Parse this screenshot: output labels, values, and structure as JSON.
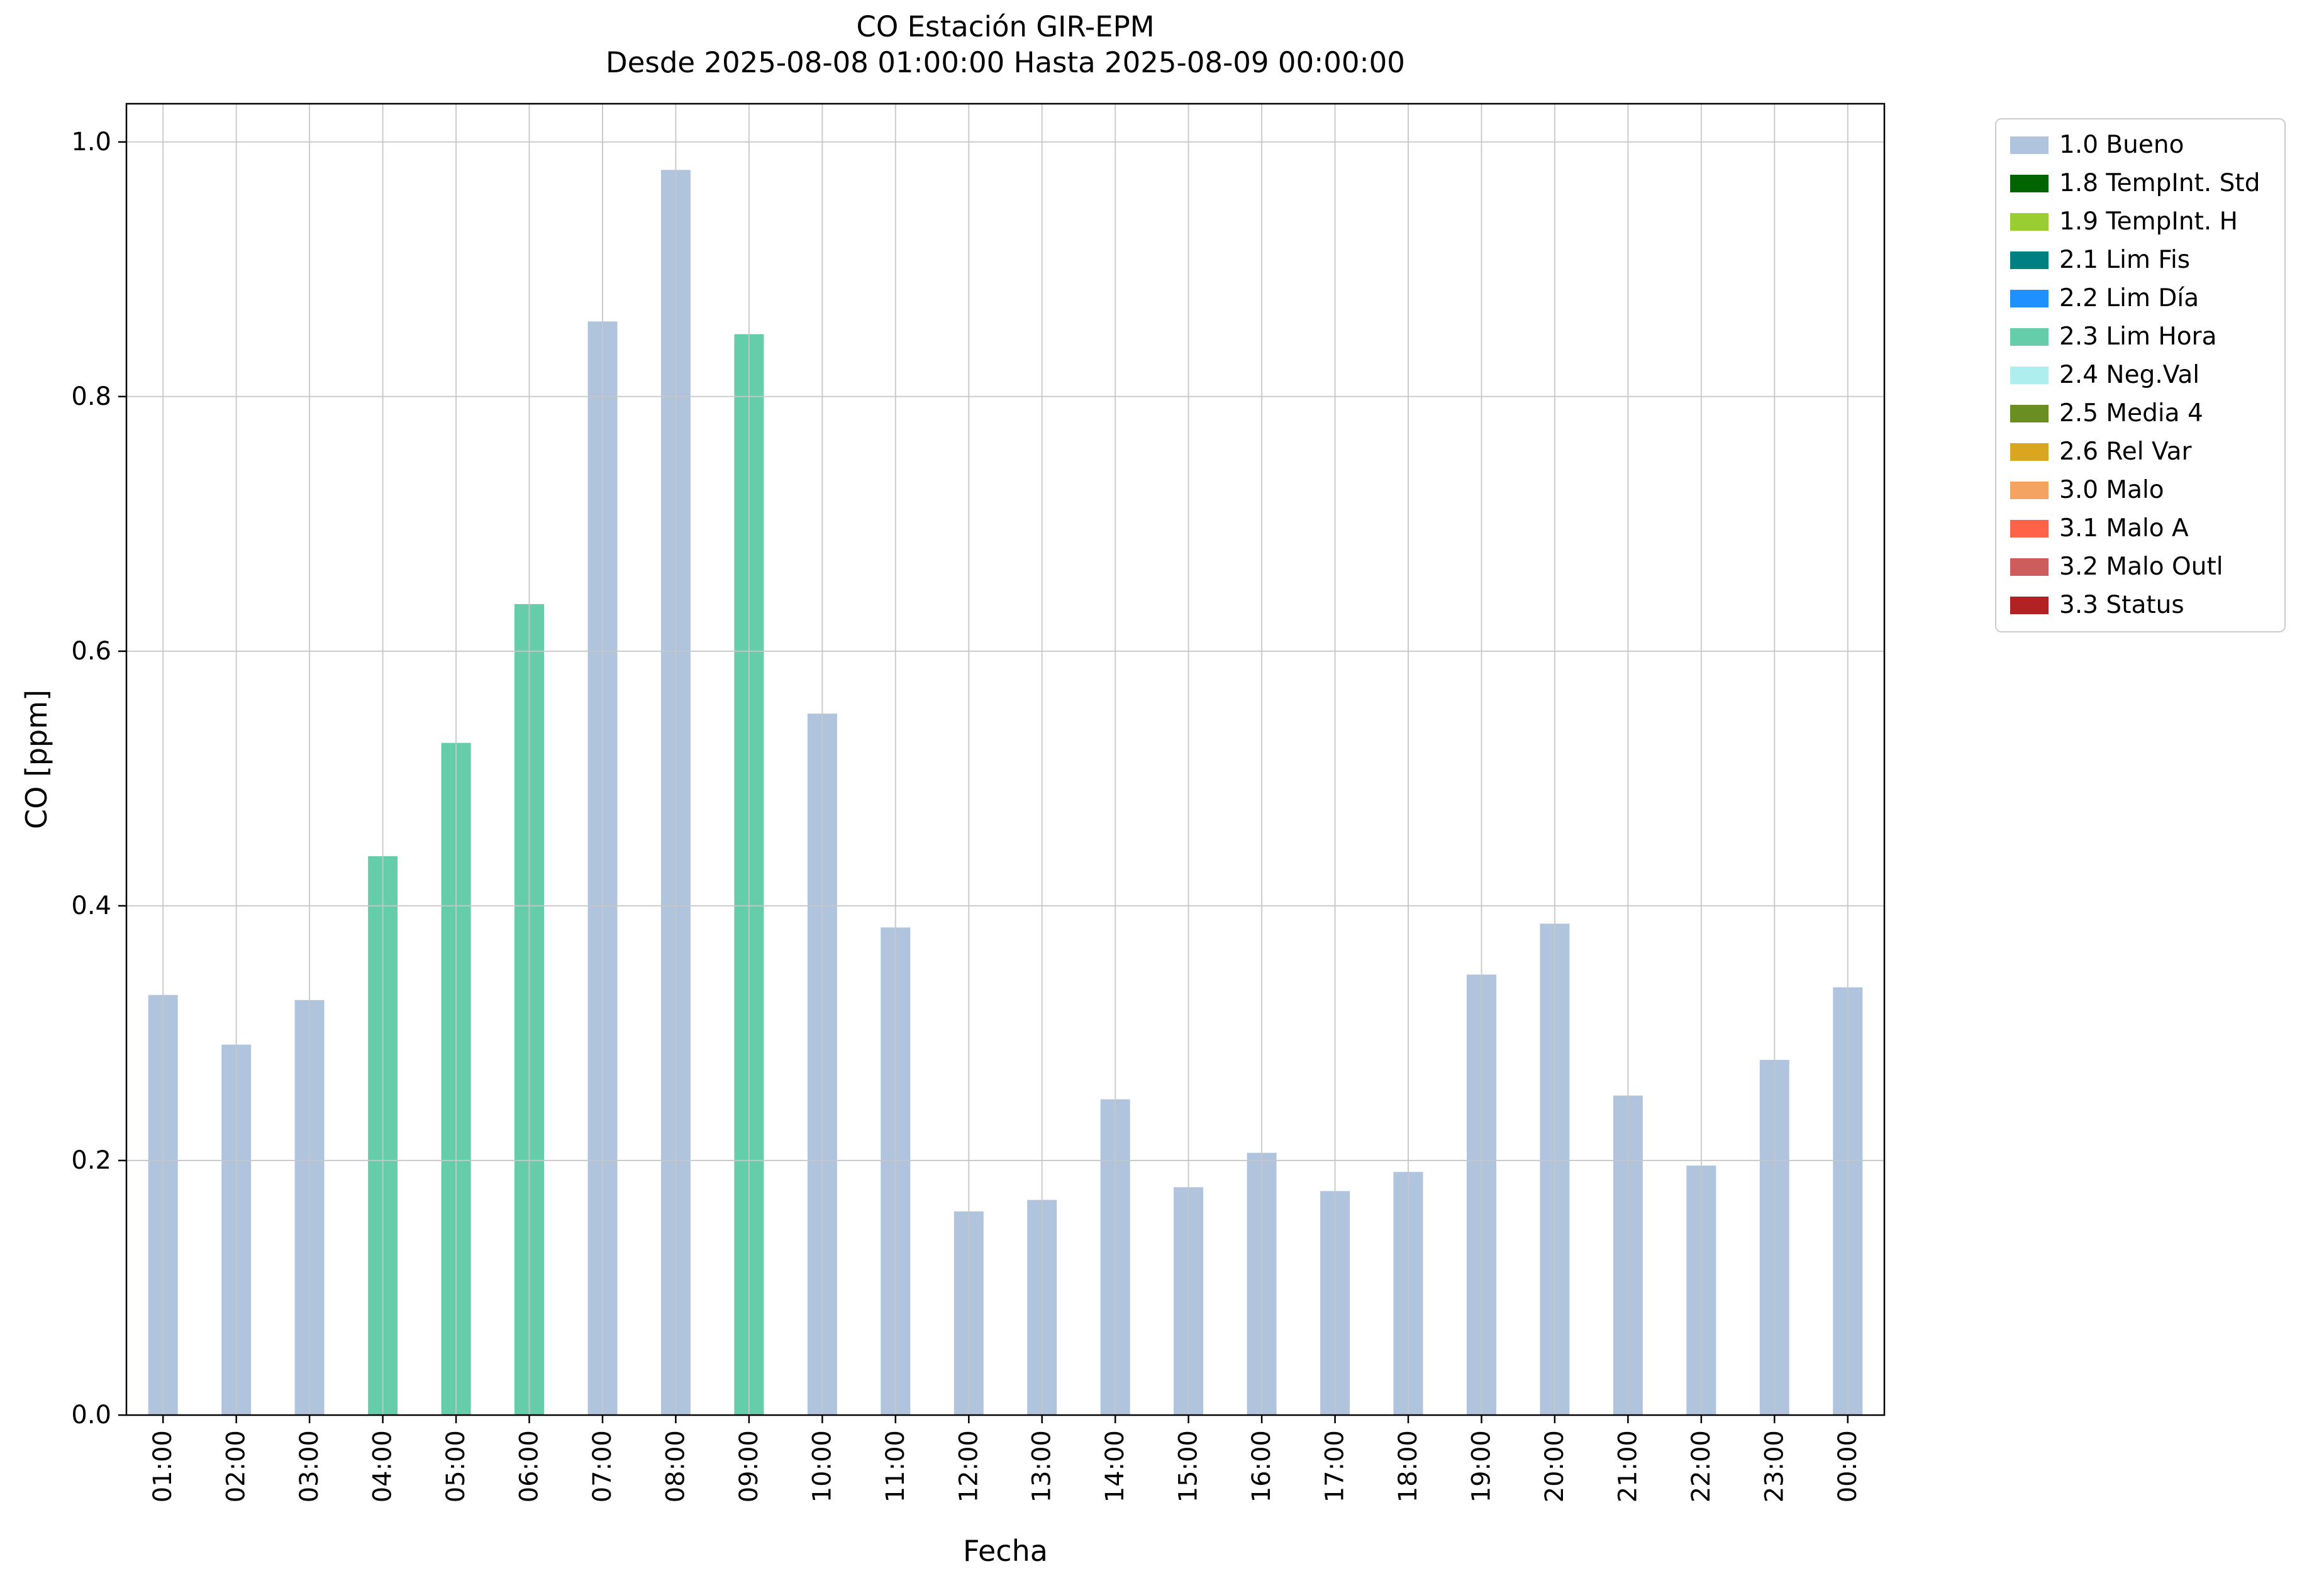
{
  "chart_data": {
    "type": "bar",
    "title": "CO Estación GIR-EPM\nDesde 2025-08-08 01:00:00 Hasta 2025-08-09 00:00:00",
    "title_line1": "CO Estación GIR-EPM",
    "title_line2": "Desde 2025-08-08 01:00:00 Hasta 2025-08-09 00:00:00",
    "xlabel": "Fecha",
    "ylabel": "CO [ppm]",
    "ylim": [
      0,
      1.03
    ],
    "grid": true,
    "legend_position": "outside-right",
    "yticks": [
      {
        "value": 0.0,
        "label": "0.0"
      },
      {
        "value": 0.2,
        "label": "0.2"
      },
      {
        "value": 0.4,
        "label": "0.4"
      },
      {
        "value": 0.6,
        "label": "0.6"
      },
      {
        "value": 0.8,
        "label": "0.8"
      },
      {
        "value": 1.0,
        "label": "1.0"
      }
    ],
    "categories": [
      "01:00",
      "02:00",
      "03:00",
      "04:00",
      "05:00",
      "06:00",
      "07:00",
      "08:00",
      "09:00",
      "10:00",
      "11:00",
      "12:00",
      "13:00",
      "14:00",
      "15:00",
      "16:00",
      "17:00",
      "18:00",
      "19:00",
      "20:00",
      "21:00",
      "22:00",
      "23:00",
      "00:00"
    ],
    "values": [
      0.33,
      0.291,
      0.326,
      0.439,
      0.528,
      0.637,
      0.859,
      0.978,
      0.849,
      0.551,
      0.383,
      0.16,
      0.169,
      0.248,
      0.179,
      0.206,
      0.176,
      0.191,
      0.346,
      0.386,
      0.251,
      0.196,
      0.279,
      0.336
    ],
    "statuses": [
      "1.0 Bueno",
      "1.0 Bueno",
      "1.0 Bueno",
      "2.3 Lim Hora",
      "2.3 Lim Hora",
      "2.3 Lim Hora",
      "1.0 Bueno",
      "1.0 Bueno",
      "2.3 Lim Hora",
      "1.0 Bueno",
      "1.0 Bueno",
      "1.0 Bueno",
      "1.0 Bueno",
      "1.0 Bueno",
      "1.0 Bueno",
      "1.0 Bueno",
      "1.0 Bueno",
      "1.0 Bueno",
      "1.0 Bueno",
      "1.0 Bueno",
      "1.0 Bueno",
      "1.0 Bueno",
      "1.0 Bueno",
      "1.0 Bueno"
    ],
    "legend": [
      {
        "label": "1.0 Bueno",
        "color": "#b0c4de"
      },
      {
        "label": "1.8 TempInt. Std",
        "color": "#006400"
      },
      {
        "label": "1.9 TempInt. H",
        "color": "#9acd32"
      },
      {
        "label": "2.1 Lim Fis",
        "color": "#008080"
      },
      {
        "label": "2.2 Lim Día",
        "color": "#1e90ff"
      },
      {
        "label": "2.3 Lim Hora",
        "color": "#66cdaa"
      },
      {
        "label": "2.4 Neg.Val",
        "color": "#afeeee"
      },
      {
        "label": "2.5 Media 4",
        "color": "#6b8e23"
      },
      {
        "label": "2.6 Rel Var",
        "color": "#daa520"
      },
      {
        "label": "3.0 Malo",
        "color": "#f4a460"
      },
      {
        "label": "3.1 Malo A",
        "color": "#ff6347"
      },
      {
        "label": "3.2 Malo Outl",
        "color": "#cd5c5c"
      },
      {
        "label": "3.3 Status",
        "color": "#b22222"
      }
    ],
    "colors": {
      "grid": "#c6c6c6",
      "axis": "#000000",
      "background": "#ffffff"
    }
  }
}
